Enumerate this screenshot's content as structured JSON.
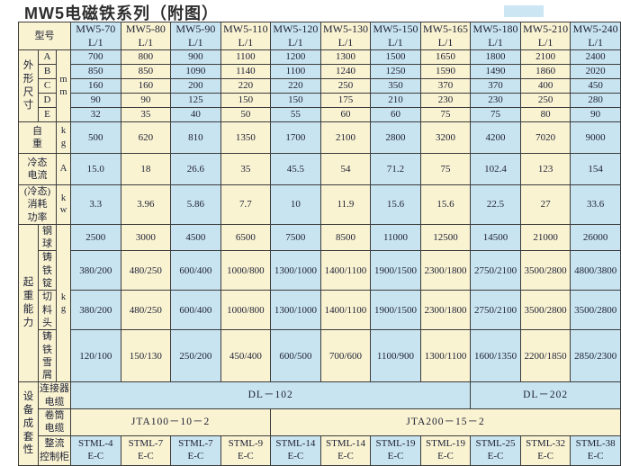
{
  "title": "MW5电磁铁系列（附图）",
  "colors": {
    "cell_cream": "#faf3d2",
    "cell_blue": "#c9e4f1",
    "border": "#3c3c3c",
    "text": "#1c2033"
  },
  "table": {
    "model_header": "型号",
    "models": [
      [
        "MW5-70",
        "L/1"
      ],
      [
        "MW5-80",
        "L/1"
      ],
      [
        "MW5-90",
        "L/1"
      ],
      [
        "MW5-110",
        "L/1"
      ],
      [
        "MW5-120",
        "L/1"
      ],
      [
        "MW5-130",
        "L/1"
      ],
      [
        "MW5-150",
        "L/1"
      ],
      [
        "MW5-165",
        "L/1"
      ],
      [
        "MW5-180",
        "L/1"
      ],
      [
        "MW5-210",
        "L/1"
      ],
      [
        "MW5-240",
        "L/1"
      ]
    ],
    "dimensions": {
      "category": "外\n形\n尺\n寸",
      "unit": "m\nm",
      "rows": [
        {
          "label": "A",
          "values": [
            700,
            800,
            900,
            1100,
            1200,
            1300,
            1500,
            1650,
            1800,
            2100,
            2400
          ]
        },
        {
          "label": "B",
          "values": [
            850,
            850,
            1090,
            1140,
            1100,
            1240,
            1250,
            1590,
            1490,
            1860,
            2020
          ]
        },
        {
          "label": "C",
          "values": [
            160,
            160,
            200,
            220,
            220,
            250,
            350,
            370,
            370,
            400,
            450
          ]
        },
        {
          "label": "D",
          "values": [
            90,
            90,
            125,
            150,
            150,
            175,
            210,
            230,
            230,
            250,
            280
          ]
        },
        {
          "label": "E",
          "values": [
            32,
            35,
            40,
            50,
            55,
            60,
            60,
            75,
            75,
            80,
            90
          ]
        }
      ]
    },
    "self_weight": {
      "label": "自\n重",
      "unit": "k\ng",
      "values": [
        500,
        620,
        810,
        1350,
        1700,
        2100,
        2800,
        3200,
        4200,
        7020,
        9000
      ]
    },
    "cold_current": {
      "label": "冷态\n电流",
      "unit": "A",
      "values": [
        "15.0",
        18,
        26.6,
        35,
        45.5,
        54,
        71.2,
        75,
        102.4,
        123,
        154
      ]
    },
    "cold_power": {
      "label": "(冷态)\n消耗\n功率",
      "unit": "k\nw",
      "values": [
        3.3,
        3.96,
        5.86,
        7.7,
        10,
        11.9,
        15.6,
        15.6,
        22.5,
        27,
        33.6
      ]
    },
    "lifting": {
      "category": "起\n重\n能\n力",
      "unit": "k\ng",
      "rows": [
        {
          "label": "钢球",
          "values": [
            2500,
            3000,
            4500,
            6500,
            7500,
            8500,
            11000,
            12500,
            14500,
            21000,
            26000
          ]
        },
        {
          "label": "铸铁\n锭",
          "values": [
            "380/200",
            "480/250",
            "600/400",
            "1000/800",
            "1300/1000",
            "1400/1100",
            "1900/1500",
            "2300/1800",
            "2750/2100",
            "3500/2800",
            "4800/3800"
          ]
        },
        {
          "label": "切料\n头",
          "values": [
            "380/200",
            "480/250",
            "600/400",
            "1000/800",
            "1300/1000",
            "1400/1100",
            "1900/1500",
            "2300/1800",
            "2750/2100",
            "3500/2800",
            "3500/2800"
          ]
        },
        {
          "label": "铸铁\n雪屑",
          "values": [
            "120/100",
            "150/130",
            "250/200",
            "450/400",
            "600/500",
            "700/600",
            "1100/900",
            "1300/1100",
            "1600/1350",
            "2200/1850",
            "2850/2300"
          ]
        }
      ]
    },
    "equipment": {
      "category": "设\n备\n成\n套\n性",
      "connector_label": "连接器\n电缆",
      "connector_span1": "DL－102",
      "connector_span2": "DL－202",
      "drum_label": "卷筒\n电缆",
      "drum_span1": "JTA100－10－2",
      "drum_span2": "JTA200－15－2",
      "rectifier_label": "整流\n控制柜",
      "rectifier_cells": [
        [
          "STML-4",
          "E-C"
        ],
        [
          "STML-7",
          "E-C"
        ],
        [
          "STML-7",
          "E-C"
        ],
        [
          "STML-9",
          "E-C"
        ],
        [
          "STML-14",
          "E-C"
        ],
        [
          "STML-14",
          "E-C"
        ],
        [
          "STML-19",
          "E-C"
        ],
        [
          "STML-19",
          "E-C"
        ],
        [
          "STML-25",
          "E-C"
        ],
        [
          "STML-32",
          "E-C"
        ],
        [
          "STML-38",
          "E-C"
        ]
      ]
    }
  }
}
